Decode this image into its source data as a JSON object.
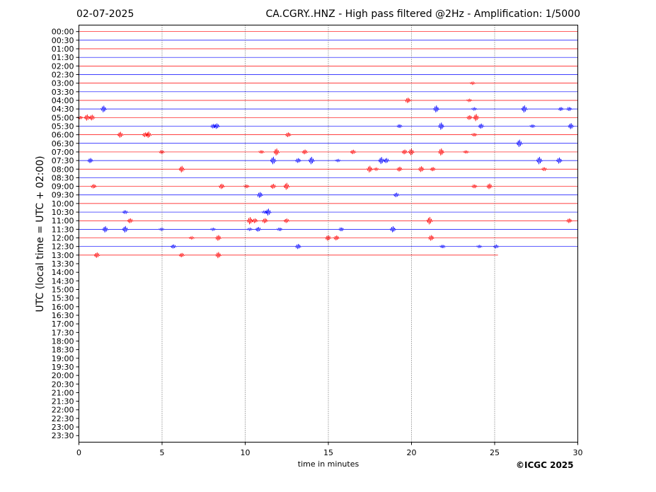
{
  "header": {
    "date": "02-07-2025",
    "title": "CA.CGRY..HNZ - High pass filtered @2Hz - Amplification: 1/5000"
  },
  "footer": {
    "credit": "©ICGC 2025"
  },
  "chart_data": {
    "type": "line",
    "title": "CA.CGRY..HNZ - High pass filtered @2Hz - Amplification: 1/5000",
    "xlabel": "time in minutes",
    "ylabel": "UTC (local time = UTC + 02:00)",
    "xlim": [
      0,
      30
    ],
    "x_ticks": [
      0,
      5,
      10,
      15,
      20,
      25,
      30
    ],
    "y_tick_labels": [
      "00:00",
      "00:30",
      "01:00",
      "01:30",
      "02:00",
      "02:30",
      "03:00",
      "03:30",
      "04:00",
      "04:30",
      "05:00",
      "05:30",
      "06:00",
      "06:30",
      "07:00",
      "07:30",
      "08:00",
      "08:30",
      "09:00",
      "09:30",
      "10:00",
      "10:30",
      "11:00",
      "11:30",
      "12:00",
      "12:30",
      "13:00",
      "13:30",
      "14:00",
      "14:30",
      "15:00",
      "15:30",
      "16:00",
      "16:30",
      "17:00",
      "17:30",
      "18:00",
      "18:30",
      "19:00",
      "19:30",
      "20:00",
      "20:30",
      "21:00",
      "21:30",
      "22:00",
      "22:30",
      "23:00",
      "23:30"
    ],
    "vertical_gridlines": [
      5,
      10,
      15,
      20,
      25
    ],
    "grid_style": "dotted",
    "trace_colors": [
      "#ff0000",
      "#0000ff"
    ],
    "last_trace_end_minute": 25.2,
    "events": [
      {
        "row": "03:00",
        "minutes": [
          23.7
        ]
      },
      {
        "row": "04:00",
        "minutes": [
          19.8,
          23.5
        ]
      },
      {
        "row": "04:30",
        "minutes": [
          1.5,
          21.5,
          23.8,
          26.8,
          29.0,
          29.5
        ]
      },
      {
        "row": "05:00",
        "minutes": [
          0.1,
          0.5,
          0.8,
          23.5,
          23.9
        ]
      },
      {
        "row": "05:30",
        "minutes": [
          8.1,
          8.3,
          19.3,
          21.8,
          24.2,
          27.3,
          29.6
        ]
      },
      {
        "row": "06:00",
        "minutes": [
          2.5,
          4.0,
          4.2,
          12.6,
          23.8
        ]
      },
      {
        "row": "06:30",
        "minutes": [
          26.5
        ]
      },
      {
        "row": "07:00",
        "minutes": [
          5.0,
          11.0,
          11.9,
          13.6,
          16.5,
          19.6,
          20.0,
          21.8,
          23.3
        ]
      },
      {
        "row": "07:30",
        "minutes": [
          0.7,
          11.7,
          13.2,
          14.0,
          15.6,
          18.2,
          18.5,
          27.7,
          28.9
        ]
      },
      {
        "row": "08:00",
        "minutes": [
          6.2,
          17.5,
          17.9,
          19.3,
          20.6,
          21.3,
          28.0
        ]
      },
      {
        "row": "09:00",
        "minutes": [
          0.9,
          8.6,
          10.1,
          11.7,
          12.5,
          23.8,
          24.7
        ]
      },
      {
        "row": "09:30",
        "minutes": [
          10.9,
          19.1
        ]
      },
      {
        "row": "10:30",
        "minutes": [
          2.8,
          11.2,
          11.4
        ]
      },
      {
        "row": "11:00",
        "minutes": [
          3.1,
          10.3,
          10.6,
          11.2,
          12.5,
          21.1,
          29.5
        ]
      },
      {
        "row": "11:30",
        "minutes": [
          1.6,
          2.8,
          5.0,
          8.1,
          10.3,
          10.8,
          12.1,
          15.8,
          18.9
        ]
      },
      {
        "row": "12:00",
        "minutes": [
          6.8,
          8.4,
          15.0,
          15.5,
          21.2
        ]
      },
      {
        "row": "12:30",
        "minutes": [
          5.7,
          13.2,
          21.9,
          24.1,
          25.1
        ]
      },
      {
        "row": "13:00",
        "minutes": [
          1.1,
          6.2,
          8.4
        ]
      }
    ]
  }
}
